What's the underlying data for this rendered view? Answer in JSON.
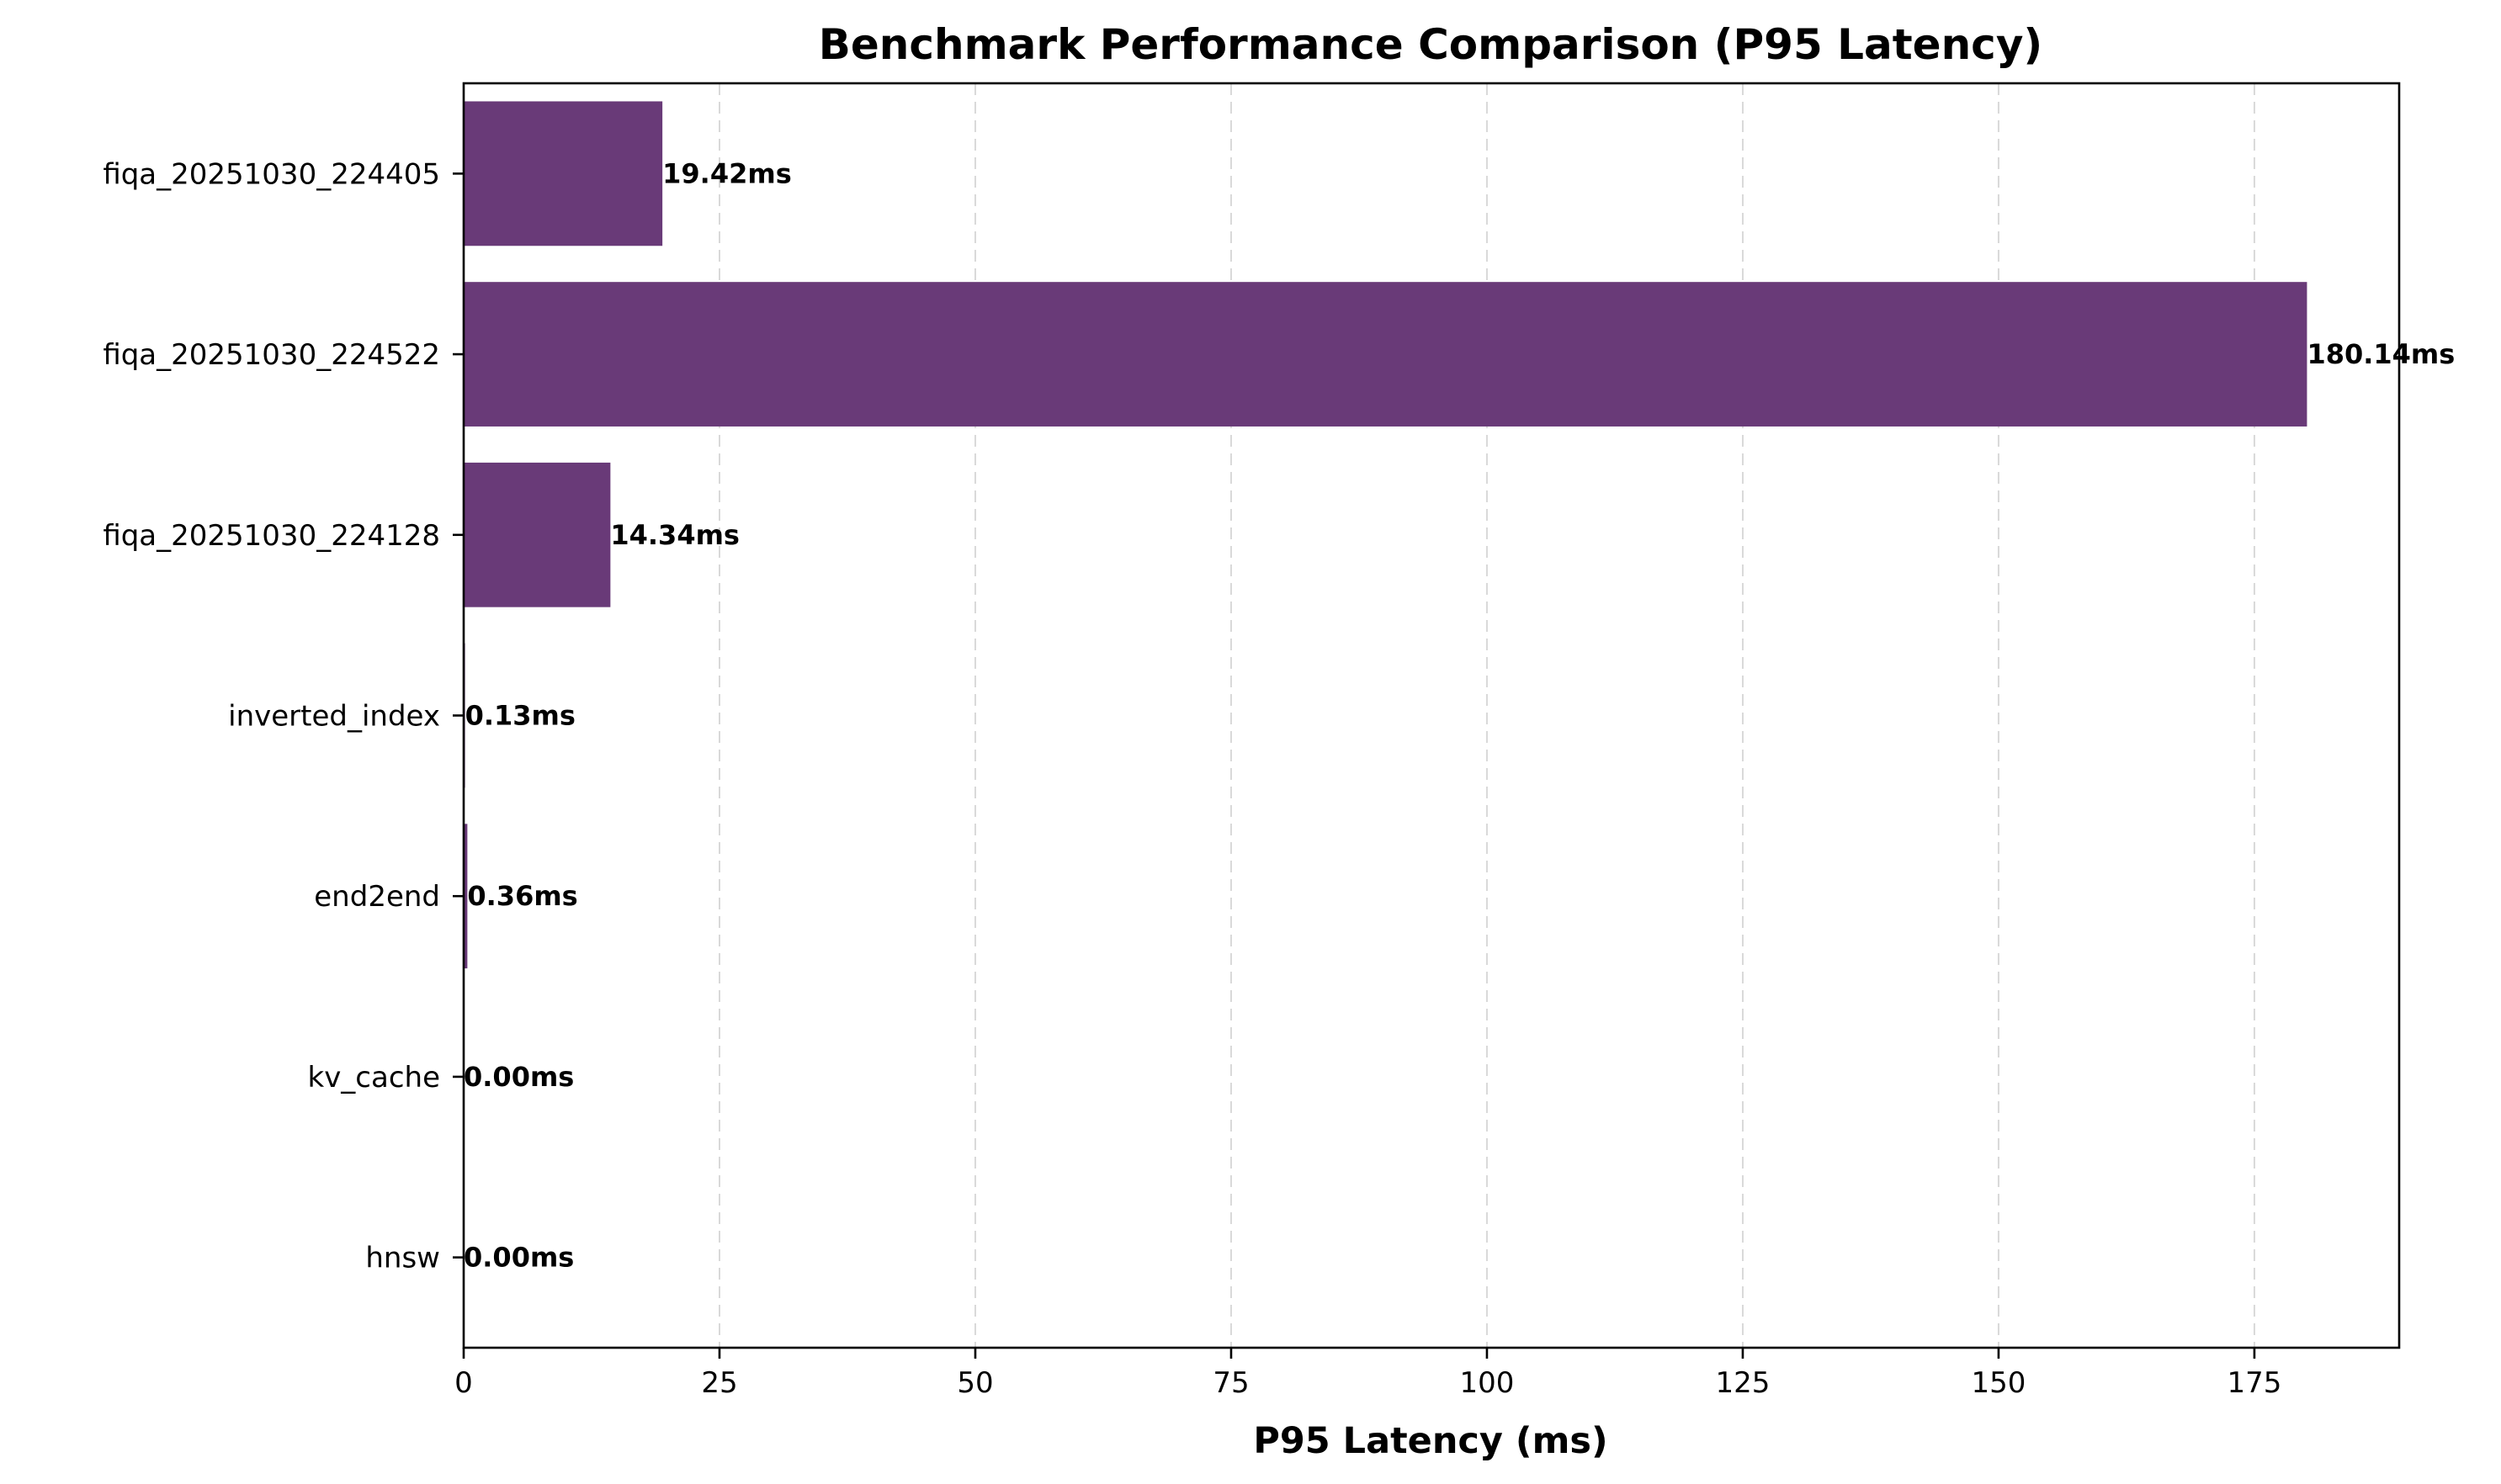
{
  "chart_data": {
    "type": "bar",
    "orientation": "horizontal",
    "title": "Benchmark Performance Comparison (P95 Latency)",
    "xlabel": "P95 Latency (ms)",
    "ylabel": "",
    "xlim": [
      0,
      189.15
    ],
    "xticks": [
      0,
      25,
      50,
      75,
      100,
      125,
      150,
      175
    ],
    "grid": {
      "x": true,
      "y": false,
      "style": "dashed"
    },
    "bar_color": "#693a78",
    "categories": [
      "fiqa_20251030_224405",
      "fiqa_20251030_224522",
      "fiqa_20251030_224128",
      "inverted_index",
      "end2end",
      "kv_cache",
      "hnsw"
    ],
    "values": [
      19.42,
      180.14,
      14.34,
      0.13,
      0.36,
      0.0,
      0.0
    ],
    "data_labels": [
      "19.42ms",
      "180.14ms",
      "14.34ms",
      "0.13ms",
      "0.36ms",
      "0.00ms",
      "0.00ms"
    ]
  }
}
